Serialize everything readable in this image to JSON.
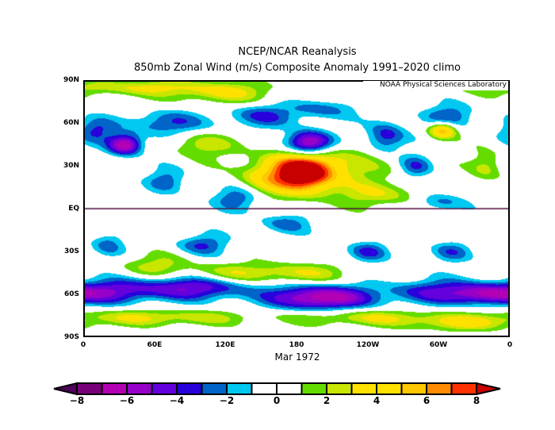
{
  "title_line1": "NCEP/NCAR Reanalysis",
  "title_line2": "850mb Zonal Wind (m/s) Composite Anomaly 1991–2020 climo",
  "watermark": "NOAA Physical Sciences Laboratory",
  "date_label": "Mar 1972",
  "y_ticks": [
    "90N",
    "60N",
    "30N",
    "EQ",
    "30S",
    "60S",
    "90S"
  ],
  "x_ticks": [
    "0",
    "60E",
    "120E",
    "180",
    "120W",
    "60W",
    "0"
  ],
  "colorbar": {
    "levels": [
      -8,
      -7,
      -6,
      -5,
      -4,
      -3,
      -2,
      -1,
      0,
      1,
      2,
      3,
      4,
      5,
      6,
      7,
      8
    ],
    "labels": [
      "−8",
      "−6",
      "−4",
      "−2",
      "0",
      "2",
      "4",
      "6",
      "8"
    ],
    "colors": [
      "#780078",
      "#b400b4",
      "#9600c8",
      "#6400dc",
      "#2800dc",
      "#0064c8",
      "#00c8f0",
      "#ffffff",
      "#ffffff",
      "#64dc00",
      "#c8e600",
      "#ffe100",
      "#ffe100",
      "#ffc800",
      "#ff8c00",
      "#ff3200"
    ],
    "under_color": "#50005a",
    "over_color": "#c80000"
  },
  "chart_data": {
    "type": "heatmap",
    "variable": "850mb Zonal Wind Composite Anomaly (m/s)",
    "period": "Mar 1972",
    "lon_range": [
      0,
      360
    ],
    "lat_range": [
      -90,
      90
    ]
  }
}
